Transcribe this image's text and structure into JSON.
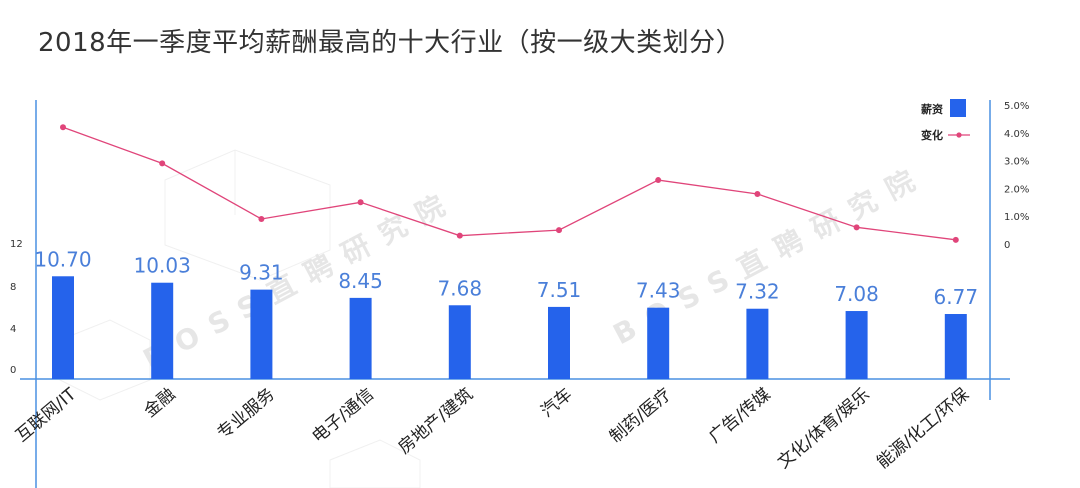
{
  "title": "2018年一季度平均薪酬最高的十大行业（按一级大类划分）",
  "watermark": "BOSS直聘研究院",
  "colors": {
    "bar": "#2563eb",
    "line": "#e0457a",
    "axis": "#4a90e2",
    "bar_label": "#4a7fd9"
  },
  "chart_data": {
    "type": "bar",
    "categories": [
      "互联网/IT",
      "金融",
      "专业服务",
      "电子/通信",
      "房地产/建筑",
      "汽车",
      "制药/医疗",
      "广告/传媒",
      "文化/体育/娱乐",
      "能源/化工/环保"
    ],
    "series": [
      {
        "name": "薪资",
        "type": "bar",
        "axis": "left",
        "values": [
          10.7,
          10.03,
          9.31,
          8.45,
          7.68,
          7.51,
          7.43,
          7.32,
          7.08,
          6.77
        ],
        "labels": [
          "10.70",
          "10.03",
          "9.31",
          "8.45",
          "7.68",
          "7.51",
          "7.43",
          "7.32",
          "7.08",
          "6.77"
        ]
      },
      {
        "name": "变化",
        "type": "line",
        "axis": "right",
        "values": [
          4.2,
          2.9,
          0.9,
          1.5,
          0.3,
          0.5,
          2.3,
          1.8,
          0.6,
          0.15
        ]
      }
    ],
    "left_axis": {
      "ticks": [
        "0",
        "4",
        "8",
        "12"
      ],
      "tick_values": [
        0,
        4,
        8,
        12
      ],
      "range": [
        0,
        12
      ]
    },
    "right_axis": {
      "ticks": [
        "0",
        "1.0%",
        "2.0%",
        "3.0%",
        "4.0%",
        "5.0%"
      ],
      "tick_values": [
        0,
        1,
        2,
        3,
        4,
        5
      ],
      "range": [
        0,
        5
      ]
    },
    "legend": {
      "placement": "top-right",
      "items": [
        "薪资",
        "变化"
      ]
    },
    "grid": false
  }
}
